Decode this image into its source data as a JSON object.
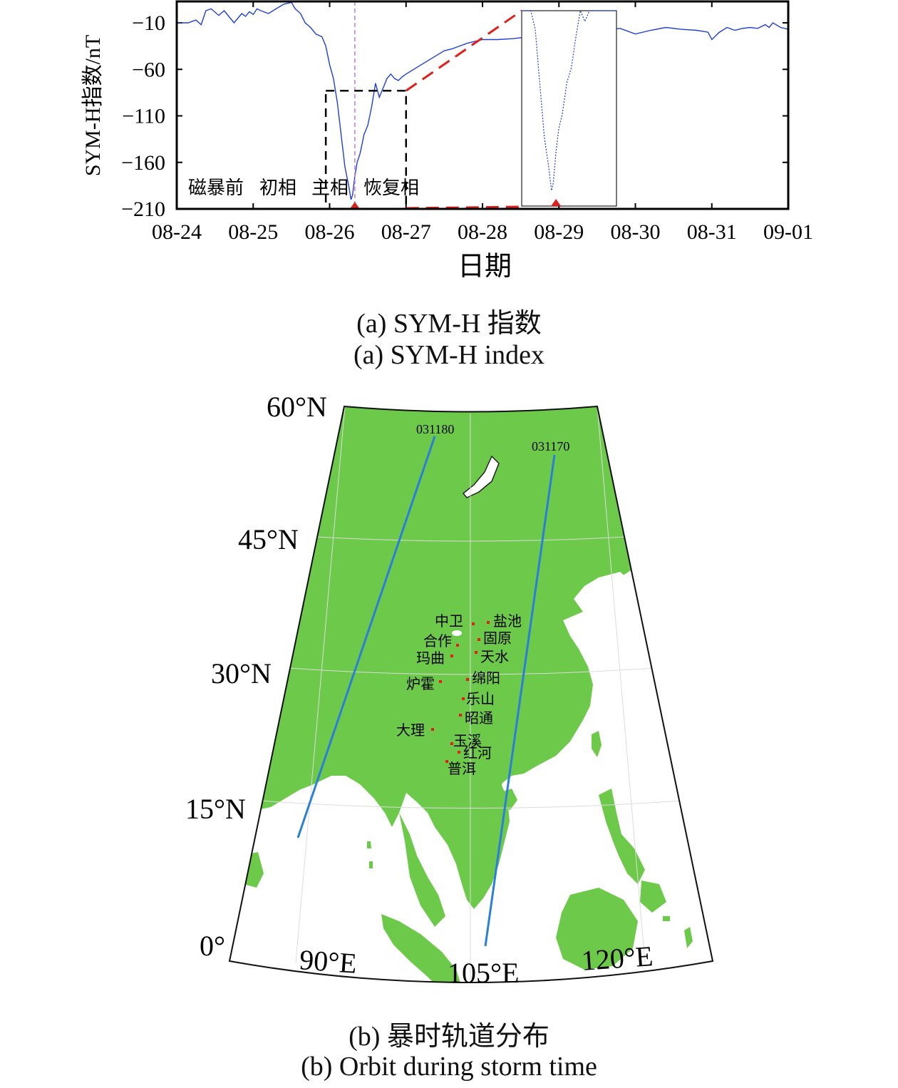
{
  "chart_data": [
    {
      "type": "line",
      "ylabel": "SYM-H指数/nT",
      "xlabel": "日期",
      "ylim": [
        -210,
        13
      ],
      "xlim": [
        0,
        8
      ],
      "x_tick_labels": [
        "08-24",
        "08-25",
        "08-26",
        "08-27",
        "08-28",
        "08-29",
        "08-30",
        "08-31",
        "09-01"
      ],
      "y_ticks": [
        -10,
        -60,
        -110,
        -160,
        -210
      ],
      "y_tick_labels": [
        "−10",
        "−60",
        "−110",
        "−160",
        "−210"
      ],
      "phase_labels": [
        "磁暴前",
        "初相",
        "主相",
        "恢复相"
      ],
      "series": [
        {
          "color": "#1f3fd6",
          "x": [
            0,
            0.15,
            0.25,
            0.32,
            0.38,
            0.45,
            0.55,
            0.62,
            0.7,
            0.75,
            0.8,
            0.85,
            0.9,
            0.95,
            1.0,
            1.05,
            1.1,
            1.2,
            1.3,
            1.4,
            1.5,
            1.55,
            1.62,
            1.68,
            1.75,
            1.82,
            1.9,
            1.95,
            2.0,
            2.05,
            2.1,
            2.15,
            2.2,
            2.25,
            2.28,
            2.3,
            2.33,
            2.36,
            2.4,
            2.45,
            2.5,
            2.55,
            2.6,
            2.65,
            2.7,
            2.75,
            2.8,
            2.85,
            2.9,
            2.95,
            3.0,
            3.1,
            3.2,
            3.3,
            3.4,
            3.5,
            3.6,
            3.7,
            3.8,
            3.9,
            4.0,
            4.2,
            4.4,
            4.6,
            4.8,
            5.0,
            5.2,
            5.4,
            5.6,
            5.8,
            6.0,
            6.2,
            6.4,
            6.6,
            6.8,
            6.95,
            7.0,
            7.1,
            7.2,
            7.3,
            7.4,
            7.5,
            7.6,
            7.7,
            7.75,
            7.8,
            7.9,
            8.0
          ],
          "y": [
            -10,
            -10,
            -7,
            -12,
            3,
            5,
            -2,
            3,
            -5,
            -10,
            -5,
            0,
            -3,
            2,
            -1,
            5,
            3,
            0,
            5,
            10,
            12,
            5,
            0,
            -10,
            -15,
            -22,
            -25,
            -35,
            -55,
            -70,
            -95,
            -130,
            -165,
            -185,
            -200,
            -195,
            -175,
            -160,
            -150,
            -130,
            -120,
            -100,
            -75,
            -90,
            -80,
            -70,
            -65,
            -70,
            -72,
            -68,
            -65,
            -60,
            -55,
            -50,
            -45,
            -40,
            -38,
            -35,
            -32,
            -30,
            -28,
            -28,
            -27,
            -25,
            -24,
            -23,
            -22,
            -20,
            -18,
            -16,
            -22,
            -18,
            -15,
            -17,
            -18,
            -20,
            -28,
            -20,
            -15,
            -18,
            -16,
            -15,
            -16,
            -12,
            -15,
            -10,
            -15,
            -17
          ]
        }
      ],
      "event_marker_x": 2.33
    },
    {
      "type": "map",
      "lat_labels": [
        "60°N",
        "45°N",
        "30°N",
        "15°N",
        "0°"
      ],
      "lon_labels": [
        "90°E",
        "105°E",
        "120°E"
      ],
      "orbits": [
        "031180",
        "031170"
      ],
      "stations": [
        "中卫",
        "盐池",
        "合作",
        "固原",
        "玛曲",
        "天水",
        "炉霍",
        "绵阳",
        "乐山",
        "昭通",
        "大理",
        "玉溪",
        "红河",
        "普洱"
      ],
      "land_color": "#6cc94a",
      "orbit_color": "#2b7fd6",
      "station_color": "#e0201a"
    }
  ],
  "captions": {
    "a_cn": "(a) SYM-H 指数",
    "a_en": "(a) SYM-H index",
    "b_cn": "(b) 暴时轨道分布",
    "b_en": "(b) Orbit during storm time"
  }
}
